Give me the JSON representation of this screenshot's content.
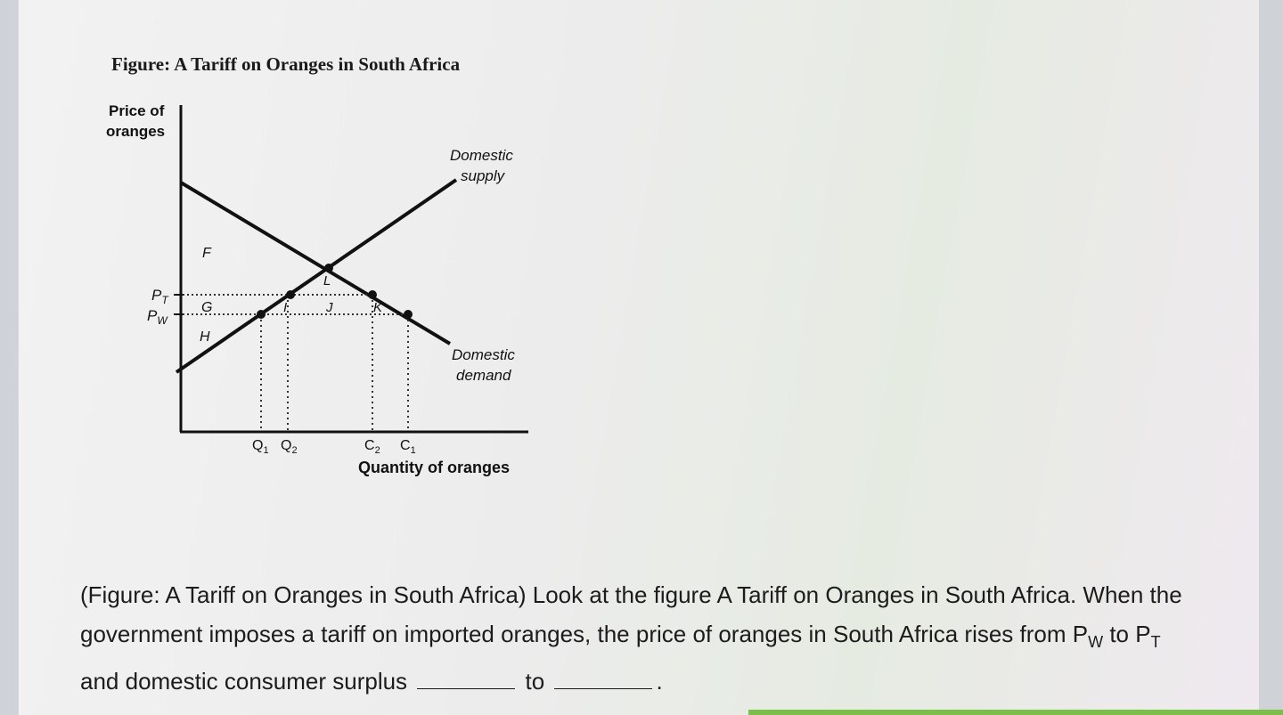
{
  "figure": {
    "title": "Figure: A Tariff on Oranges in South Africa",
    "y_axis_label_line1": "Price of",
    "y_axis_label_line2": "oranges",
    "x_axis_label": "Quantity of oranges",
    "supply_label_line1": "Domestic",
    "supply_label_line2": "supply",
    "demand_label_line1": "Domestic",
    "demand_label_line2": "demand",
    "price_labels": {
      "pt": "P",
      "pt_sub": "T",
      "pw": "P",
      "pw_sub": "W"
    },
    "quantity_labels": {
      "q1": "Q",
      "q1_sub": "1",
      "q2": "Q",
      "q2_sub": "2",
      "c2": "C",
      "c2_sub": "2",
      "c1": "C",
      "c1_sub": "1"
    },
    "area_labels": {
      "f": "F",
      "g": "G",
      "h": "H",
      "i": "I",
      "j": "J",
      "k": "K",
      "l": "L"
    }
  },
  "question": {
    "part1": "(Figure: A Tariff on Oranges in South Africa) Look at the figure A Tariff on Oranges in South Africa. When the government imposes a tariff on imported oranges, the price of oranges in South Africa rises from P",
    "pw_sub": "W",
    "part2": " to P",
    "pt_sub": "T",
    "part3": " and domestic consumer surplus",
    "part4": "to",
    "part5": "."
  },
  "colors": {
    "ink": "#111111",
    "text": "#1c1c1c",
    "accent_strip": "#7bbf4a"
  }
}
